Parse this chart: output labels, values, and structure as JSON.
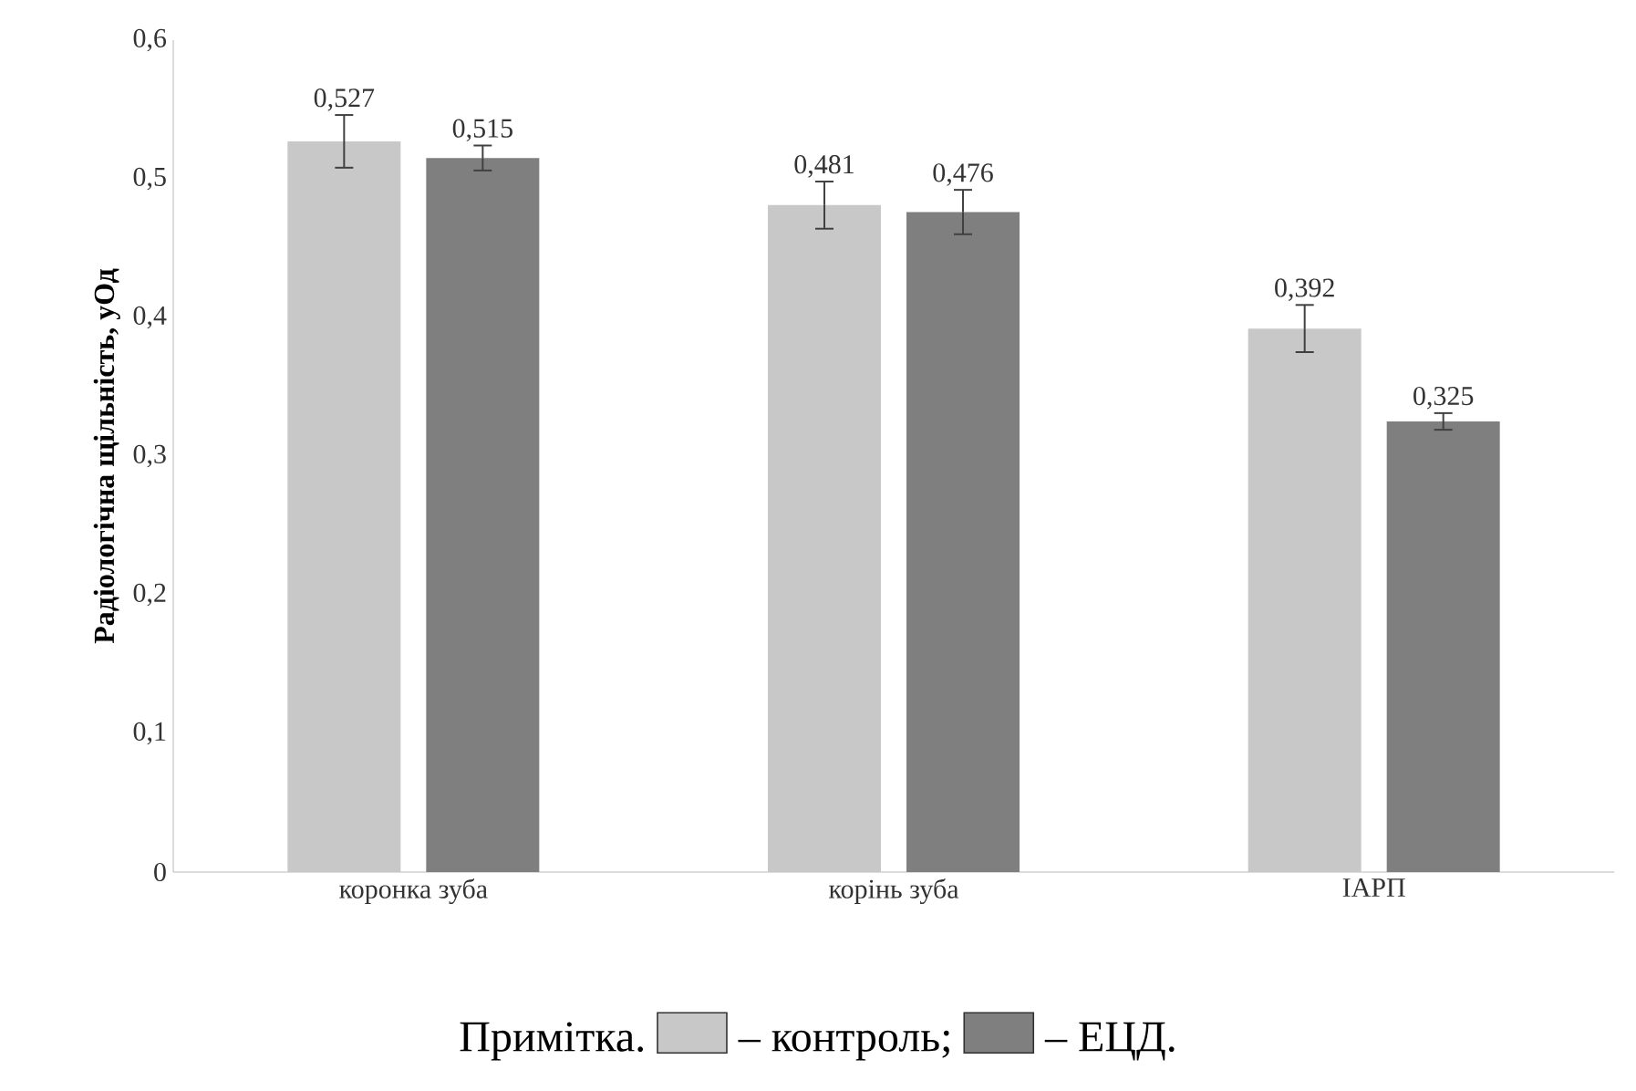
{
  "chart_data": {
    "type": "bar",
    "ylabel": "Радіологічна щільність, уОд",
    "legend_title": "Примітка.",
    "categories": [
      "коронка зуба",
      "корінь зуба",
      "ІАРП"
    ],
    "series": [
      {
        "name": "– контроль;",
        "color": "#c8c8c8",
        "values": [
          0.527,
          0.481,
          0.392
        ],
        "errors": [
          0.019,
          0.017,
          0.017
        ],
        "value_labels": [
          "0,527",
          "0,481",
          "0,392"
        ]
      },
      {
        "name": "– ЕЦД.",
        "color": "#7f7f7f",
        "values": [
          0.515,
          0.476,
          0.325
        ],
        "errors": [
          0.009,
          0.016,
          0.006
        ],
        "value_labels": [
          "0,515",
          "0,476",
          "0,325"
        ]
      }
    ],
    "ylim": [
      0,
      0.6
    ],
    "yticks": [
      {
        "value": 0,
        "label": "0"
      },
      {
        "value": 0.1,
        "label": "0,1"
      },
      {
        "value": 0.2,
        "label": "0,2"
      },
      {
        "value": 0.3,
        "label": "0,3"
      },
      {
        "value": 0.4,
        "label": "0,4"
      },
      {
        "value": 0.5,
        "label": "0,5"
      },
      {
        "value": 0.6,
        "label": "0,6"
      }
    ],
    "grid": false,
    "legend": "bottom"
  }
}
